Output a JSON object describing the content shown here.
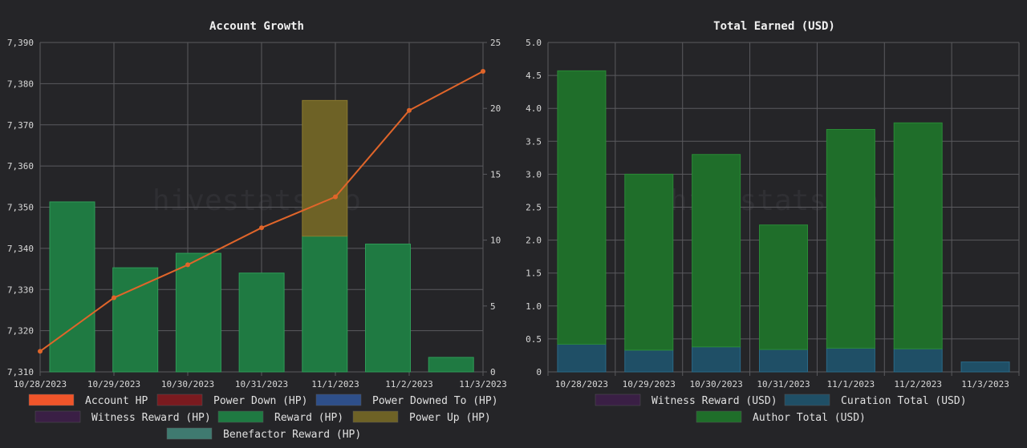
{
  "watermark": "hivestats.io",
  "colors": {
    "background": "#252528",
    "grid": "#5a5a5e",
    "account_hp": "#f0552a",
    "power_down": "#7a1a1f",
    "power_downed_to": "#2e4f8a",
    "witness_reward_hp": "#3a1f45",
    "reward_hp": "#1f7a42",
    "power_up": "#6e6226",
    "benefactor_reward": "#3f7a70",
    "account_line": "#e0652a",
    "witness_reward_usd": "#3a1f45",
    "curation_total": "#1f4f66",
    "author_total": "#1f6e2a"
  },
  "chart_data": [
    {
      "type": "bar",
      "title": "Account Growth",
      "categories": [
        "10/28/2023",
        "10/29/2023",
        "10/30/2023",
        "10/31/2023",
        "11/1/2023",
        "11/2/2023",
        "11/3/2023"
      ],
      "y_left": {
        "ylim": [
          7310,
          7390
        ],
        "ticks": [
          "7,310",
          "7,320",
          "7,330",
          "7,340",
          "7,350",
          "7,360",
          "7,370",
          "7,380",
          "7,390"
        ]
      },
      "y_right": {
        "ylim": [
          0,
          25
        ],
        "ticks": [
          "0",
          "5",
          "10",
          "15",
          "20",
          "25"
        ]
      },
      "series": [
        {
          "name": "Account HP",
          "type": "line",
          "axis": "left",
          "values": [
            7315,
            7328,
            7336,
            7345,
            7352.5,
            7373.5,
            7383
          ]
        },
        {
          "name": "Power Down (HP)",
          "type": "bar",
          "axis": "right",
          "values": [
            0,
            0,
            0,
            0,
            0,
            0,
            0
          ]
        },
        {
          "name": "Power Downed To (HP)",
          "type": "bar",
          "axis": "right",
          "values": [
            0,
            0,
            0,
            0,
            0,
            0,
            0
          ]
        },
        {
          "name": "Witness Reward (HP)",
          "type": "bar",
          "axis": "right",
          "values": [
            0,
            0,
            0,
            0,
            0,
            0,
            0
          ]
        },
        {
          "name": "Reward (HP)",
          "type": "bar",
          "axis": "right",
          "values": [
            12.9,
            7.9,
            9.0,
            7.5,
            10.3,
            9.7,
            1.1
          ]
        },
        {
          "name": "Power Up (HP)",
          "type": "bar",
          "axis": "right",
          "values": [
            0,
            0,
            0,
            0,
            10.3,
            0,
            0
          ]
        },
        {
          "name": "Benefactor Reward (HP)",
          "type": "bar",
          "axis": "right",
          "values": [
            0,
            0,
            0,
            0,
            0,
            0,
            0
          ]
        }
      ],
      "legend_position": "bottom",
      "grid": true
    },
    {
      "type": "bar",
      "title": "Total Earned (USD)",
      "categories": [
        "10/28/2023",
        "10/29/2023",
        "10/30/2023",
        "10/31/2023",
        "11/1/2023",
        "11/2/2023",
        "11/3/2023"
      ],
      "ylim": [
        0,
        5
      ],
      "y_ticks": [
        "0",
        "0.5",
        "1.0",
        "1.5",
        "2.0",
        "2.5",
        "3.0",
        "3.5",
        "4.0",
        "4.5",
        "5.0"
      ],
      "stacked": true,
      "series": [
        {
          "name": "Witness Reward (USD)",
          "values": [
            0,
            0,
            0,
            0,
            0,
            0,
            0
          ]
        },
        {
          "name": "Curation Total (USD)",
          "values": [
            0.42,
            0.33,
            0.38,
            0.34,
            0.36,
            0.35,
            0.15
          ]
        },
        {
          "name": "Author Total (USD)",
          "values": [
            4.15,
            2.67,
            2.92,
            1.89,
            3.32,
            3.43,
            0
          ]
        }
      ],
      "legend_position": "bottom",
      "grid": true
    }
  ]
}
